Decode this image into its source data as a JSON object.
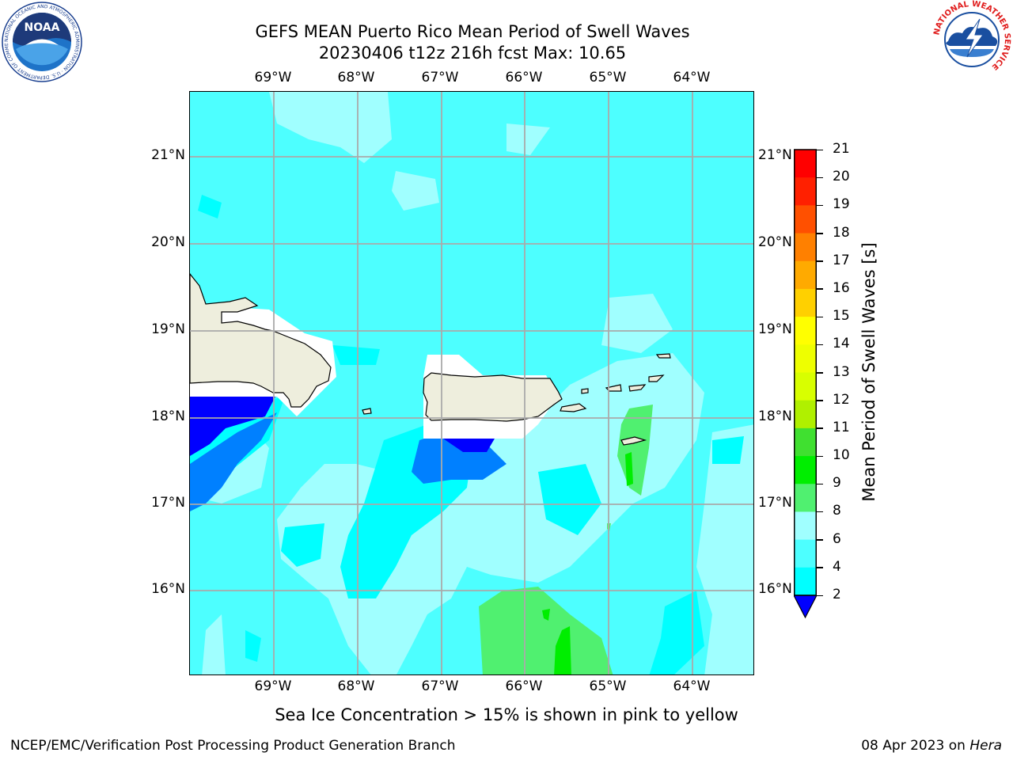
{
  "title": {
    "line1": "GEFS MEAN Puerto Rico Mean Period of Swell Waves",
    "line2": "20230406 t12z 216h fcst   Max: 10.65"
  },
  "map": {
    "lon_labels": [
      "69°W",
      "68°W",
      "67°W",
      "66°W",
      "65°W",
      "64°W"
    ],
    "lat_labels": [
      "21°N",
      "20°N",
      "19°N",
      "18°N",
      "17°N",
      "16°N"
    ],
    "background_color": "#4dffff",
    "land_color": "#eeeedd"
  },
  "colorbar": {
    "title": "Mean Period of Swell Waves [s]",
    "ticks": [
      "21",
      "20",
      "19",
      "18",
      "17",
      "16",
      "15",
      "14",
      "13",
      "12",
      "11",
      "10",
      "9",
      "8",
      "6",
      "4",
      "2"
    ],
    "colors": [
      "#ff0000",
      "#ff2000",
      "#ff5000",
      "#ff8000",
      "#ffaa00",
      "#ffd000",
      "#ffff00",
      "#eeff00",
      "#d8ff00",
      "#b0f000",
      "#40e030",
      "#00ee00",
      "#50f070",
      "#a0ffff",
      "#4dffff",
      "#00ffff",
      "#0080ff",
      "#0000ff"
    ]
  },
  "subtitle": "Sea Ice Concentration > 15% is shown in pink to yellow",
  "footer": {
    "left": "NCEP/EMC/Verification Post Processing Product Generation Branch",
    "right_date": "08 Apr 2023 on ",
    "right_host": "Hera"
  },
  "logos": {
    "noaa_text": "NOAA",
    "noaa_ring": "NATIONAL OCEANIC AND ATMOSPHERIC ADMINISTRATION · U.S. DEPARTMENT OF COMMERCE",
    "nws_ring": "NATIONAL WEATHER SERVICE"
  }
}
